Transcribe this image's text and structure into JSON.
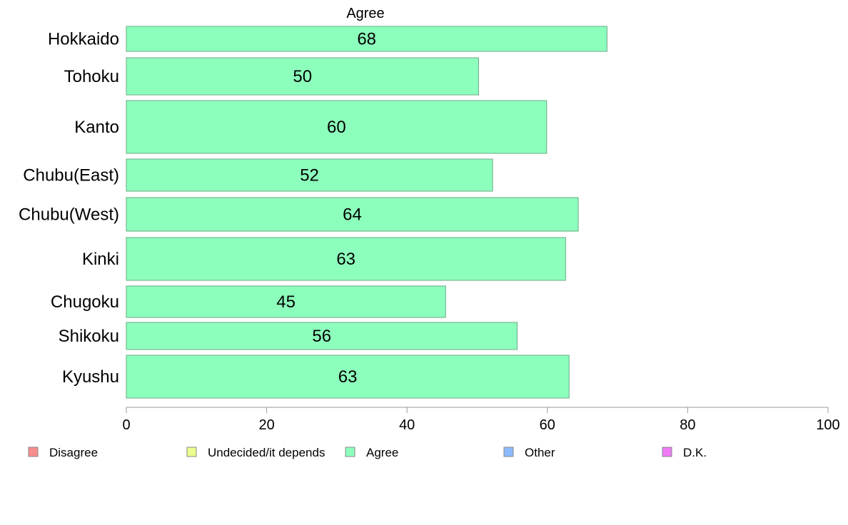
{
  "chart_data": {
    "type": "bar",
    "orientation": "horizontal",
    "title": "Agree",
    "categories": [
      "Hokkaido",
      "Tohoku",
      "Kanto",
      "Chubu(East)",
      "Chubu(West)",
      "Kinki",
      "Chugoku",
      "Shikoku",
      "Kyushu"
    ],
    "series": [
      {
        "name": "Agree",
        "values": [
          68.5,
          50.2,
          59.9,
          52.2,
          64.4,
          62.6,
          45.5,
          55.7,
          63.1
        ],
        "labels": [
          "68",
          "50",
          "60",
          "52",
          "64",
          "63",
          "45",
          "56",
          "63"
        ]
      }
    ],
    "xlim": [
      0,
      100
    ],
    "xticks": [
      "0",
      "20",
      "40",
      "60",
      "80",
      "100"
    ],
    "grid": false,
    "legend": {
      "placement": "bottom",
      "items": [
        {
          "label": "Disagree",
          "color": "#f78d8d"
        },
        {
          "label": "Undecided/it depends",
          "color": "#eaff8d"
        },
        {
          "label": "Agree",
          "color": "#8dffbd"
        },
        {
          "label": "Other",
          "color": "#8dbaff"
        },
        {
          "label": "D.K.",
          "color": "#ee7bf5"
        }
      ]
    },
    "colors": {
      "bar_fill": "#8dffbd",
      "bar_stroke": "#6aa884",
      "axis": "#999999"
    }
  }
}
